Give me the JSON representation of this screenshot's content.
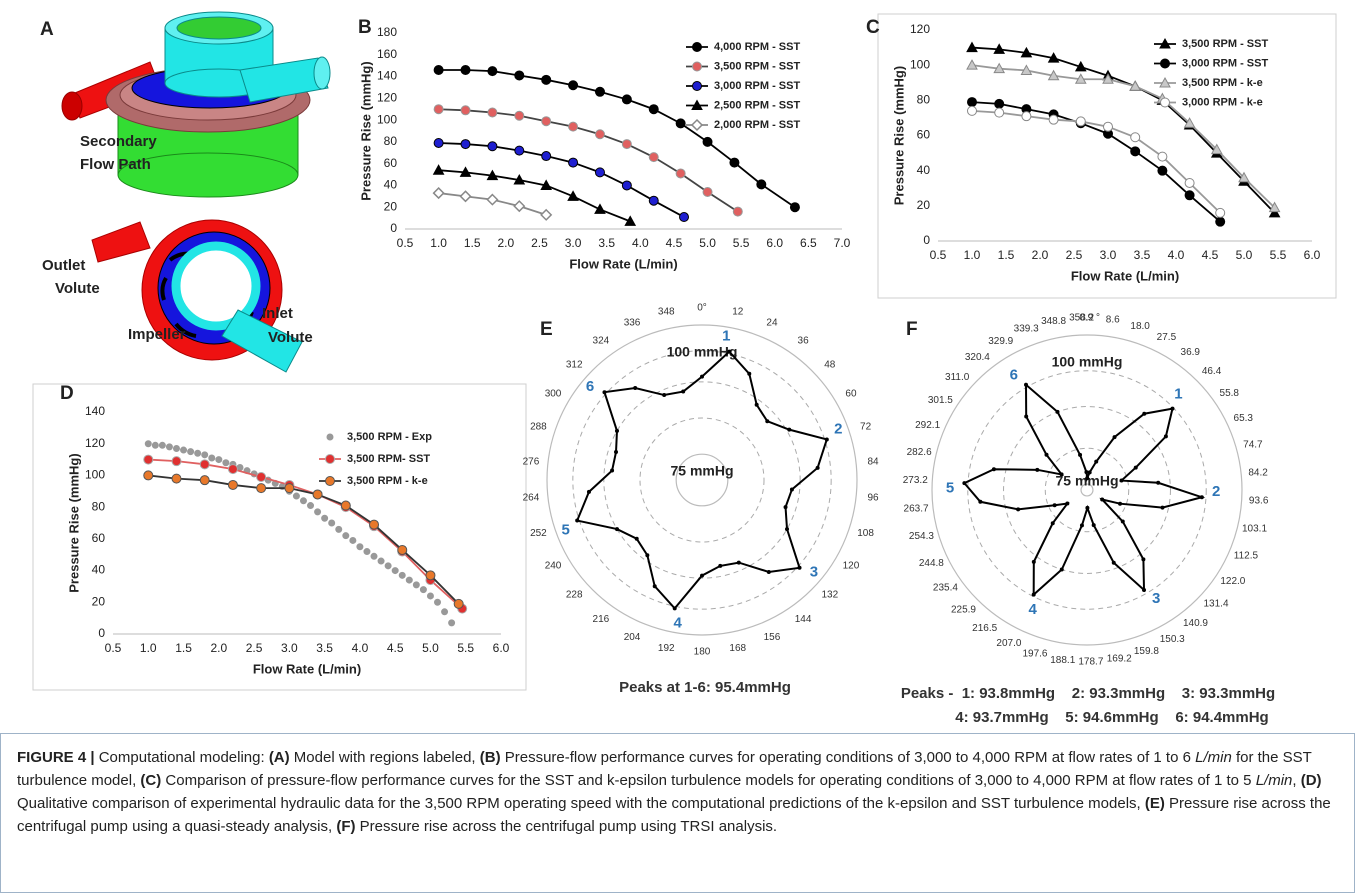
{
  "panel_a": {
    "letter": "A",
    "labels": [
      [
        "Secondary",
        "Flow Path"
      ],
      [
        "Outlet",
        "Volute"
      ],
      [
        "Impeller"
      ],
      [
        "Inlet",
        "Volute"
      ]
    ]
  },
  "chart_data": [
    {
      "type": "line",
      "panel": "B",
      "x_label": "Flow Rate (L/min)",
      "y_label": "Pressure Rise (mmHg)",
      "xlim": [
        0.5,
        7.0
      ],
      "xticks": [
        0.5,
        {
          "value": 1,
          "label": "1.0"
        },
        1.5,
        {
          "value": 2,
          "label": "2.0"
        },
        2.5,
        {
          "value": 3,
          "label": "3.0"
        },
        3.5,
        {
          "value": 4,
          "label": "4.0"
        },
        4.5,
        {
          "value": 5,
          "label": "5.0"
        },
        5.5,
        {
          "value": 6,
          "label": "6.0"
        },
        6.5,
        {
          "value": 7,
          "label": "7.0"
        }
      ],
      "ylim": [
        0,
        180
      ],
      "yticks": [
        0,
        20,
        40,
        60,
        80,
        100,
        120,
        140,
        160,
        180
      ],
      "legend": "upper right",
      "series": [
        {
          "name": "4,000 RPM - SST",
          "color": "#000000",
          "marker": "circle",
          "marker_fill": "#000000",
          "marker_edge": "#000000",
          "x": [
            1,
            1.4,
            1.8,
            2.2,
            2.6,
            3,
            3.4,
            3.8,
            4.2,
            4.6,
            5,
            5.4,
            5.8,
            6.3
          ],
          "values": [
            146,
            146,
            145,
            141,
            137,
            132,
            126,
            119,
            110,
            97,
            80,
            61,
            41,
            20
          ]
        },
        {
          "name": "3,500 RPM - SST",
          "color": "#444444",
          "marker": "circle",
          "marker_fill": "#e06060",
          "marker_edge": "#999999",
          "x": [
            1,
            1.4,
            1.8,
            2.2,
            2.6,
            3,
            3.4,
            3.8,
            4.2,
            4.6,
            5,
            5.45
          ],
          "values": [
            110,
            109,
            107,
            104,
            99,
            94,
            87,
            78,
            66,
            51,
            34,
            16
          ]
        },
        {
          "name": "3,000 RPM - SST",
          "color": "#000000",
          "marker": "circle",
          "marker_fill": "#1f1fd0",
          "marker_edge": "#000000",
          "x": [
            1,
            1.4,
            1.8,
            2.2,
            2.6,
            3,
            3.4,
            3.8,
            4.2,
            4.65
          ],
          "values": [
            79,
            78,
            76,
            72,
            67,
            61,
            52,
            40,
            26,
            11
          ]
        },
        {
          "name": "2,500 RPM - SST",
          "color": "#000000",
          "marker": "triangle",
          "marker_fill": "#000000",
          "marker_edge": "#000000",
          "x": [
            1,
            1.4,
            1.8,
            2.2,
            2.6,
            3,
            3.4,
            3.85
          ],
          "values": [
            54,
            52,
            49,
            45,
            40,
            30,
            18,
            7
          ]
        },
        {
          "name": "2,000 RPM - SST",
          "color": "#888888",
          "marker": "diamond",
          "marker_fill": "#ffffff",
          "marker_edge": "#888888",
          "x": [
            1,
            1.4,
            1.8,
            2.2,
            2.6
          ],
          "values": [
            33,
            30,
            27,
            21,
            13
          ]
        }
      ]
    },
    {
      "type": "line",
      "panel": "C",
      "x_label": "Flow Rate (L/min)",
      "y_label": "Pressure Rise (mmHg)",
      "xlim": [
        0.5,
        6.0
      ],
      "xticks": [
        0.5,
        {
          "value": 1,
          "label": "1.0"
        },
        1.5,
        {
          "value": 2,
          "label": "2.0"
        },
        2.5,
        {
          "value": 3,
          "label": "3.0"
        },
        3.5,
        {
          "value": 4,
          "label": "4.0"
        },
        4.5,
        {
          "value": 5,
          "label": "5.0"
        },
        5.5,
        {
          "value": 6,
          "label": "6.0"
        }
      ],
      "ylim": [
        0,
        120
      ],
      "yticks": [
        0,
        20,
        40,
        60,
        80,
        100,
        120
      ],
      "legend": "upper right",
      "series": [
        {
          "name": "3,500 RPM - SST",
          "color": "#000000",
          "marker": "triangle",
          "marker_fill": "#000000",
          "marker_edge": "#000000",
          "x": [
            1,
            1.4,
            1.8,
            2.2,
            2.6,
            3,
            3.4,
            3.8,
            4.2,
            4.6,
            5,
            5.45
          ],
          "values": [
            110,
            109,
            107,
            104,
            99,
            94,
            88,
            80,
            66,
            50,
            34,
            16
          ]
        },
        {
          "name": "3,000 RPM - SST",
          "color": "#000000",
          "marker": "circle",
          "marker_fill": "#000000",
          "marker_edge": "#000000",
          "x": [
            1,
            1.4,
            1.8,
            2.2,
            2.6,
            3,
            3.4,
            3.8,
            4.2,
            4.65
          ],
          "values": [
            79,
            78,
            75,
            72,
            67,
            61,
            51,
            40,
            26,
            11
          ]
        },
        {
          "name": "3,500 RPM - k-e",
          "color": "#999999",
          "marker": "triangle",
          "marker_fill": "#c8c8c8",
          "marker_edge": "#888888",
          "x": [
            1,
            1.4,
            1.8,
            2.2,
            2.6,
            3,
            3.4,
            3.8,
            4.2,
            4.6,
            5,
            5.45
          ],
          "values": [
            100,
            98,
            97,
            94,
            92,
            92,
            88,
            81,
            67,
            52,
            36,
            19
          ]
        },
        {
          "name": "3,000 RPM - k-e",
          "color": "#999999",
          "marker": "circle",
          "marker_fill": "#ffffff",
          "marker_edge": "#888888",
          "x": [
            1,
            1.4,
            1.8,
            2.2,
            2.6,
            3,
            3.4,
            3.8,
            4.2,
            4.65
          ],
          "values": [
            74,
            73,
            71,
            69,
            68,
            65,
            59,
            48,
            33,
            16
          ]
        }
      ]
    },
    {
      "type": "line",
      "panel": "D",
      "x_label": "Flow Rate (L/min)",
      "y_label": "Pressure Rise (mmHg)",
      "xlim": [
        0.5,
        6.0
      ],
      "xticks": [
        0.5,
        {
          "value": 1,
          "label": "1.0"
        },
        1.5,
        {
          "value": 2,
          "label": "2.0"
        },
        2.5,
        {
          "value": 3,
          "label": "3.0"
        },
        3.5,
        {
          "value": 4,
          "label": "4.0"
        },
        4.5,
        {
          "value": 5,
          "label": "5.0"
        },
        5.5,
        {
          "value": 6,
          "label": "6.0"
        }
      ],
      "ylim": [
        0,
        140
      ],
      "yticks": [
        0,
        20,
        40,
        60,
        80,
        100,
        120,
        140
      ],
      "legend": "upper right",
      "series": [
        {
          "name": "3,500 RPM - Exp",
          "color": "#999999",
          "line": false,
          "marker": "circle",
          "marker_fill": "#999999",
          "marker_edge": "#999999",
          "x": [
            1,
            1.1,
            1.2,
            1.3,
            1.4,
            1.5,
            1.6,
            1.7,
            1.8,
            1.9,
            2,
            2.1,
            2.2,
            2.3,
            2.4,
            2.5,
            2.6,
            2.7,
            2.8,
            2.9,
            3,
            3.1,
            3.2,
            3.3,
            3.4,
            3.5,
            3.6,
            3.7,
            3.8,
            3.9,
            4,
            4.1,
            4.2,
            4.3,
            4.4,
            4.5,
            4.6,
            4.7,
            4.8,
            4.9,
            5,
            5.1,
            5.2,
            5.3
          ],
          "values": [
            120,
            119,
            119,
            118,
            117,
            116,
            115,
            114,
            113,
            111,
            110,
            108,
            107,
            105,
            103,
            101,
            99,
            97,
            95,
            93,
            90,
            87,
            84,
            81,
            77,
            73,
            70,
            66,
            62,
            59,
            55,
            52,
            49,
            46,
            43,
            40,
            37,
            34,
            31,
            28,
            24,
            20,
            14,
            7
          ]
        },
        {
          "name": "3,500 RPM- SST",
          "color": "#e06060",
          "marker": "circle",
          "marker_fill": "#e03030",
          "marker_edge": "#aaaaaa",
          "x": [
            1,
            1.4,
            1.8,
            2.2,
            2.6,
            3,
            3.4,
            3.8,
            4.2,
            4.6,
            5,
            5.45
          ],
          "values": [
            110,
            109,
            107,
            104,
            99,
            94,
            88,
            80,
            68,
            52,
            34,
            16
          ]
        },
        {
          "name": "3,500 RPM - k-e",
          "color": "#333333",
          "marker": "circle",
          "marker_fill": "#e8782a",
          "marker_edge": "#555555",
          "x": [
            1,
            1.4,
            1.8,
            2.2,
            2.6,
            3,
            3.4,
            3.8,
            4.2,
            4.6,
            5,
            5.4
          ],
          "values": [
            100,
            98,
            97,
            94,
            92,
            92,
            88,
            81,
            69,
            53,
            37,
            19
          ]
        }
      ]
    },
    {
      "type": "polar",
      "panel": "E",
      "rlim": [
        70,
        100
      ],
      "rticks": [
        {
          "value": 75,
          "label": "75 mmHg"
        },
        {
          "value": 100,
          "label": "100 mmHg"
        }
      ],
      "rgrid": [
        82,
        89,
        95
      ],
      "thetaticks": [
        {
          "value": 0,
          "label": "0°"
        },
        12,
        24,
        36,
        48,
        60,
        72,
        84,
        96,
        108,
        120,
        132,
        144,
        156,
        168,
        180,
        192,
        204,
        216,
        228,
        240,
        252,
        264,
        276,
        288,
        300,
        312,
        324,
        336,
        348
      ],
      "theta": [
        0,
        12,
        24,
        36,
        48,
        60,
        72,
        84,
        96,
        108,
        120,
        132,
        144,
        156,
        168,
        180,
        192,
        204,
        216,
        228,
        240,
        252,
        264,
        276,
        288,
        300,
        312,
        324,
        336,
        348
      ],
      "values": [
        90,
        95.4,
        92.5,
        88,
        87,
        89.5,
        95.4,
        92.5,
        87.5,
        87,
        89,
        95.4,
        92,
        87.5,
        87,
        88.5,
        95.4,
        92.5,
        88,
        87,
        89,
        95.4,
        92,
        87.5,
        87.5,
        89,
        95.4,
        92,
        88,
        87.5
      ],
      "color": "#000000",
      "peak_labels": [
        "1",
        "2",
        "3",
        "4",
        "5",
        "6"
      ],
      "annotations": [
        "Peaks at 1-6: 95.4mmHg"
      ]
    },
    {
      "type": "polar",
      "panel": "F",
      "rlim": [
        74,
        100
      ],
      "rticks": [
        {
          "value": 75,
          "label": "75 mmHg"
        },
        {
          "value": 100,
          "label": "100 mmHg"
        }
      ],
      "rgrid": [
        81,
        88,
        94
      ],
      "thetaticks": [
        {
          "value": 0.9,
          "label": "0.9 °"
        },
        8.6,
        {
          "value": 18,
          "label": "18.0"
        },
        27.5,
        36.9,
        46.4,
        55.8,
        65.3,
        74.7,
        84.2,
        93.6,
        103.1,
        112.5,
        {
          "value": 122,
          "label": "122.0"
        },
        131.4,
        140.9,
        150.3,
        159.8,
        169.2,
        178.7,
        188.1,
        197.6,
        {
          "value": 207,
          "label": "207.0"
        },
        216.5,
        225.9,
        235.4,
        244.8,
        254.3,
        263.7,
        273.2,
        282.6,
        292.1,
        301.5,
        {
          "value": 311,
          "label": "311.0"
        },
        320.4,
        329.9,
        339.3,
        348.8,
        358.2
      ],
      "theta": [
        0.9,
        8.6,
        18,
        27.5,
        36.9,
        46.4,
        55.8,
        65.3,
        74.7,
        84.2,
        93.6,
        103.1,
        112.5,
        122,
        131.4,
        140.9,
        150.3,
        159.8,
        169.2,
        178.7,
        188.1,
        197.6,
        207,
        216.5,
        225.9,
        235.4,
        244.8,
        254.3,
        263.7,
        273.2,
        282.6,
        292.1,
        301.5,
        311,
        320.4,
        329.9,
        339.3,
        348.8,
        358.2
      ],
      "values": [
        76,
        77,
        79,
        84,
        90,
        93.8,
        90,
        83,
        80,
        86,
        93.3,
        87,
        80,
        77,
        82,
        89,
        93.3,
        87,
        80,
        77,
        80,
        88,
        93.7,
        89,
        82,
        78,
        80,
        86,
        92,
        94.6,
        90,
        83,
        79,
        83,
        90,
        94.4,
        88,
        80,
        77
      ],
      "color": "#000000",
      "peak_labels": [
        "1",
        "2",
        "3",
        "4",
        "5",
        "6"
      ],
      "annotations": [
        "Peaks -  1: 93.8mmHg    2: 93.3mmHg    3: 93.3mmHg",
        "4: 93.7mmHg    5: 94.6mmHg    6: 94.4mmHg"
      ]
    }
  ],
  "caption": [
    "FIGURE 4 |",
    " Computational modeling: ",
    "(A)",
    " Model with regions labeled, ",
    "(B)",
    " Pressure-flow performance curves for operating conditions of 3,000 to 4,000 RPM at flow rates of 1 to 6 ",
    "L/min",
    " for the SST turbulence model, ",
    "(C)",
    " Comparison of pressure-flow performance curves for the SST and k-epsilon turbulence models for operating conditions of 3,000 to 4,000 RPM at flow rates of 1 to 5 ",
    "L/min",
    ", ",
    "(D)",
    " Qualitative comparison of experimental hydraulic data for the 3,500 RPM operating speed with the computational predictions of the k-epsilon and SST turbulence models, ",
    "(E)",
    " Pressure rise across the centrifugal pump using a quasi-steady analysis, ",
    "(F)",
    " Pressure rise across the centrifugal pump using TRSI analysis."
  ]
}
